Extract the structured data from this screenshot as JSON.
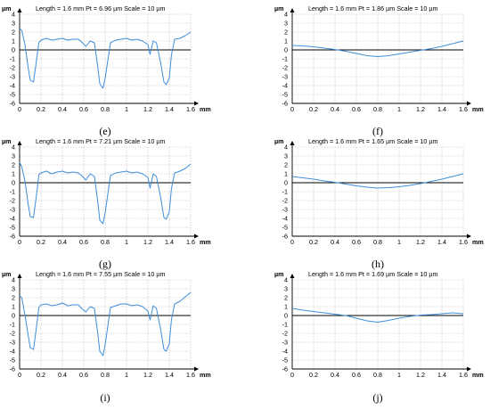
{
  "figure": {
    "colors": {
      "profile": "#3f8fdc",
      "grid": "#b9b9b9",
      "axis": "#000000",
      "zero_line": "#000000"
    }
  },
  "chart_data": [
    {
      "panel": "(e)",
      "type": "line",
      "header": "Length = 1.6 mm  Pt = 6.96 µm  Scale = 10 µm",
      "ylabel": "µm",
      "xlabel": "mm",
      "xlim": [
        0,
        1.6
      ],
      "ylim": [
        -6,
        4
      ],
      "xticks": [
        "0",
        "0.2",
        "0.4",
        "0.6",
        "0.8",
        "1",
        "1.2",
        "1.4",
        "1.6"
      ],
      "yticks": [
        "4",
        "3",
        "2",
        "1",
        "0",
        "-1",
        "-2",
        "-3",
        "-4",
        "-5",
        "-6"
      ],
      "grid": true,
      "series": [
        {
          "x": [
            0,
            0.02,
            0.05,
            0.08,
            0.1,
            0.13,
            0.16,
            0.18,
            0.2,
            0.25,
            0.3,
            0.35,
            0.4,
            0.45,
            0.5,
            0.55,
            0.58,
            0.62,
            0.66,
            0.7,
            0.73,
            0.75,
            0.78,
            0.8,
            0.85,
            0.9,
            0.95,
            1,
            1.05,
            1.1,
            1.15,
            1.2,
            1.22,
            1.25,
            1.28,
            1.32,
            1.35,
            1.37,
            1.4,
            1.42,
            1.45,
            1.5,
            1.55,
            1.6
          ],
          "y": [
            2.4,
            2.2,
            0.6,
            -2,
            -3.4,
            -3.6,
            -1,
            0.8,
            1.1,
            1.3,
            1.1,
            1.2,
            1.3,
            1.1,
            1.2,
            1.2,
            0.9,
            0.4,
            1.0,
            0.8,
            -1.8,
            -3.8,
            -4.3,
            -3.2,
            0.8,
            1.1,
            1.2,
            1.3,
            1.1,
            1.2,
            1.0,
            0.6,
            -0.5,
            1.0,
            0.8,
            -1.5,
            -3.6,
            -3.9,
            -3.2,
            -0.6,
            1.2,
            1.3,
            1.6,
            2.0
          ]
        }
      ]
    },
    {
      "panel": "(f)",
      "type": "line",
      "header": "Length = 1.6 mm  Pt = 1.86 µm  Scale = 10 µm",
      "ylabel": "µm",
      "xlabel": "mm",
      "xlim": [
        0,
        1.6
      ],
      "ylim": [
        -6,
        4
      ],
      "xticks": [
        "0",
        "0.2",
        "0.4",
        "0.6",
        "0.8",
        "1",
        "1.2",
        "1.4",
        "1.6"
      ],
      "yticks": [
        "4",
        "3",
        "2",
        "1",
        "0",
        "-1",
        "-2",
        "-3",
        "-4",
        "-5",
        "-6"
      ],
      "grid": true,
      "series": [
        {
          "x": [
            0,
            0.1,
            0.2,
            0.3,
            0.4,
            0.5,
            0.6,
            0.7,
            0.8,
            0.9,
            1,
            1.1,
            1.2,
            1.3,
            1.4,
            1.5,
            1.6
          ],
          "y": [
            0.5,
            0.45,
            0.35,
            0.2,
            0.05,
            -0.15,
            -0.4,
            -0.65,
            -0.75,
            -0.65,
            -0.45,
            -0.25,
            -0.05,
            0.15,
            0.4,
            0.7,
            1.0
          ]
        }
      ]
    },
    {
      "panel": "(g)",
      "type": "line",
      "header": "Length = 1.6 mm  Pt = 7.21 µm  Scale = 10 µm",
      "ylabel": "µm",
      "xlabel": "mm",
      "xlim": [
        0,
        1.6
      ],
      "ylim": [
        -6,
        4
      ],
      "xticks": [
        "0",
        "0.2",
        "0.4",
        "0.6",
        "0.8",
        "1",
        "1.2",
        "1.4",
        "1.6"
      ],
      "yticks": [
        "4",
        "3",
        "2",
        "1",
        "0",
        "-1",
        "-2",
        "-3",
        "-4",
        "-5",
        "-6"
      ],
      "grid": true,
      "series": [
        {
          "x": [
            0,
            0.02,
            0.05,
            0.08,
            0.1,
            0.13,
            0.16,
            0.18,
            0.2,
            0.25,
            0.3,
            0.35,
            0.4,
            0.45,
            0.5,
            0.55,
            0.58,
            0.62,
            0.66,
            0.7,
            0.73,
            0.75,
            0.78,
            0.8,
            0.85,
            0.9,
            0.95,
            1,
            1.05,
            1.1,
            1.15,
            1.2,
            1.22,
            1.25,
            1.28,
            1.32,
            1.35,
            1.37,
            1.4,
            1.42,
            1.45,
            1.5,
            1.55,
            1.6
          ],
          "y": [
            2.3,
            1.8,
            0.2,
            -2.4,
            -3.8,
            -3.9,
            -1.2,
            0.9,
            1.1,
            1.3,
            1.0,
            1.2,
            1.3,
            1.1,
            1.2,
            1.1,
            0.8,
            0.3,
            1.0,
            0.7,
            -2.0,
            -4.2,
            -4.6,
            -3.4,
            0.8,
            1.1,
            1.2,
            1.3,
            1.1,
            1.2,
            1.0,
            0.6,
            -0.6,
            1.0,
            0.7,
            -1.7,
            -3.9,
            -4.1,
            -3.3,
            -0.7,
            1.1,
            1.3,
            1.6,
            2.1
          ]
        }
      ]
    },
    {
      "panel": "(h)",
      "type": "line",
      "header": "Length = 1.6 mm  Pt = 1.65 µm  Scale = 10 µm",
      "ylabel": "µm",
      "xlabel": "mm",
      "xlim": [
        0,
        1.6
      ],
      "ylim": [
        -6,
        4
      ],
      "xticks": [
        "0",
        "0.2",
        "0.4",
        "0.6",
        "0.8",
        "1",
        "1.2",
        "1.4",
        "1.6"
      ],
      "yticks": [
        "4",
        "3",
        "2",
        "1",
        "0",
        "-1",
        "-2",
        "-3",
        "-4",
        "-5",
        "-6"
      ],
      "grid": true,
      "series": [
        {
          "x": [
            0,
            0.1,
            0.2,
            0.3,
            0.4,
            0.5,
            0.6,
            0.7,
            0.8,
            0.9,
            1,
            1.1,
            1.2,
            1.3,
            1.4,
            1.5,
            1.6
          ],
          "y": [
            0.7,
            0.55,
            0.4,
            0.2,
            0.05,
            -0.15,
            -0.35,
            -0.5,
            -0.6,
            -0.55,
            -0.45,
            -0.3,
            -0.1,
            0.15,
            0.4,
            0.7,
            1.0
          ]
        }
      ]
    },
    {
      "panel": "(i)",
      "type": "line",
      "header": "Length = 1.6 mm  Pt = 7.55 µm  Scale = 10 µm",
      "ylabel": "µm",
      "xlabel": "mm",
      "xlim": [
        0,
        1.6
      ],
      "ylim": [
        -6,
        4
      ],
      "xticks": [
        "0",
        "0.2",
        "0.4",
        "0.6",
        "0.8",
        "1",
        "1.2",
        "1.4",
        "1.6"
      ],
      "yticks": [
        "4",
        "3",
        "2",
        "1",
        "0",
        "-1",
        "-2",
        "-3",
        "-4",
        "-5",
        "-6"
      ],
      "grid": true,
      "series": [
        {
          "x": [
            0,
            0.02,
            0.05,
            0.08,
            0.1,
            0.13,
            0.16,
            0.18,
            0.2,
            0.25,
            0.3,
            0.35,
            0.4,
            0.45,
            0.5,
            0.55,
            0.58,
            0.62,
            0.66,
            0.7,
            0.73,
            0.75,
            0.78,
            0.8,
            0.85,
            0.9,
            0.95,
            1,
            1.05,
            1.1,
            1.15,
            1.2,
            1.22,
            1.25,
            1.28,
            1.32,
            1.35,
            1.37,
            1.4,
            1.42,
            1.45,
            1.5,
            1.55,
            1.6
          ],
          "y": [
            2.2,
            2.0,
            0.1,
            -2.2,
            -3.6,
            -3.8,
            -1.1,
            0.9,
            1.2,
            1.3,
            1.1,
            1.2,
            1.4,
            1.1,
            1.2,
            1.2,
            0.8,
            0.4,
            1.0,
            0.8,
            -1.9,
            -4.0,
            -4.5,
            -3.3,
            0.9,
            1.1,
            1.3,
            1.3,
            1.1,
            1.2,
            1.0,
            0.5,
            -0.5,
            1.1,
            0.8,
            -1.6,
            -3.8,
            -4.0,
            -3.2,
            -0.5,
            1.3,
            1.6,
            2.1,
            2.6
          ]
        }
      ]
    },
    {
      "panel": "(j)",
      "type": "line",
      "header": "Length = 1.6 mm  Pt = 1.69 µm  Scale = 10 µm",
      "ylabel": "µm",
      "xlabel": "mm",
      "xlim": [
        0,
        1.6
      ],
      "ylim": [
        -6,
        4
      ],
      "xticks": [
        "0",
        "0.2",
        "0.4",
        "0.6",
        "0.8",
        "1",
        "1.2",
        "1.4",
        "1.6"
      ],
      "yticks": [
        "4",
        "3",
        "2",
        "1",
        "0",
        "-1",
        "-2",
        "-3",
        "-4",
        "-5",
        "-6"
      ],
      "grid": true,
      "series": [
        {
          "x": [
            0,
            0.1,
            0.2,
            0.3,
            0.4,
            0.5,
            0.6,
            0.7,
            0.8,
            0.9,
            1,
            1.1,
            1.2,
            1.3,
            1.4,
            1.5,
            1.6
          ],
          "y": [
            0.8,
            0.6,
            0.45,
            0.3,
            0.15,
            0.0,
            -0.3,
            -0.6,
            -0.75,
            -0.55,
            -0.3,
            -0.1,
            0.05,
            0.1,
            0.2,
            0.3,
            0.2
          ]
        }
      ]
    }
  ]
}
